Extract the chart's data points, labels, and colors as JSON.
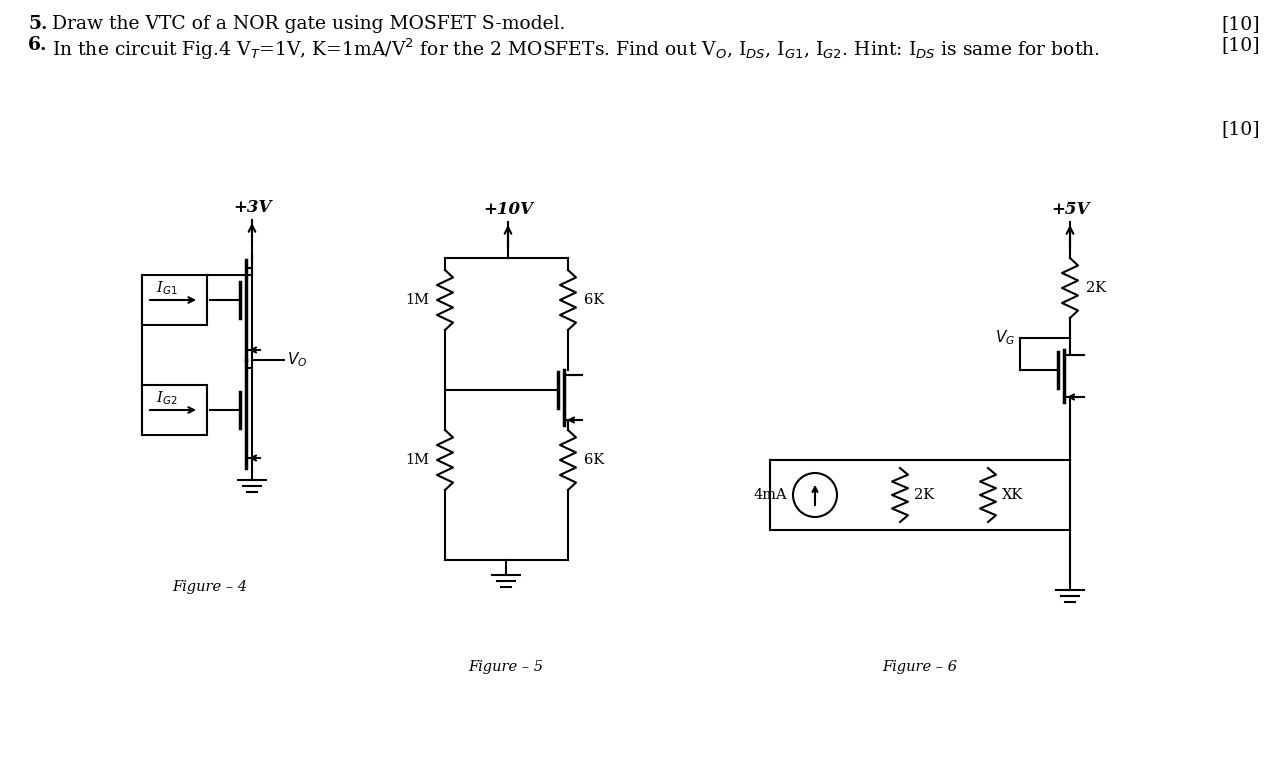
{
  "bg_color": "#ffffff",
  "line_color": "#000000",
  "header_fs": 13.5,
  "label_fs": 11,
  "resistor_fs": 10.5,
  "fig4_vdd": "+3V",
  "fig5_vdd": "+10V",
  "fig6_vdd": "+5V",
  "fig4_label": "Figure – 4",
  "fig5_label": "Figure – 5",
  "fig6_label": "Figure – 6",
  "score1": "[10]",
  "score2": "[10]",
  "score3": "[10]",
  "line1_num": "5.",
  "line1_text": "Draw the VTC of a NOR gate using MOSFET S-model.",
  "line2_num": "6.",
  "line2_text": "In the circuit Fig.4 V$_T$=1V, K=1mA/V$^2$ for the 2 MOSFETs. Find out V$_O$, I$_{DS}$, I$_{G1}$, I$_{G2}$. Hint: I$_{DS}$ is same for both.",
  "ig1": "I$_{G1}$",
  "ig2": "I$_{G2}$",
  "vo": "V$_O$",
  "vg": "V$_G$",
  "r1m_a": "1M",
  "r1m_b": "1M",
  "r6k_a": "6K",
  "r6k_b": "6K",
  "r2k_top": "2K",
  "r2k_bot": "2K",
  "rxk": "XK",
  "i4ma": "4mA"
}
